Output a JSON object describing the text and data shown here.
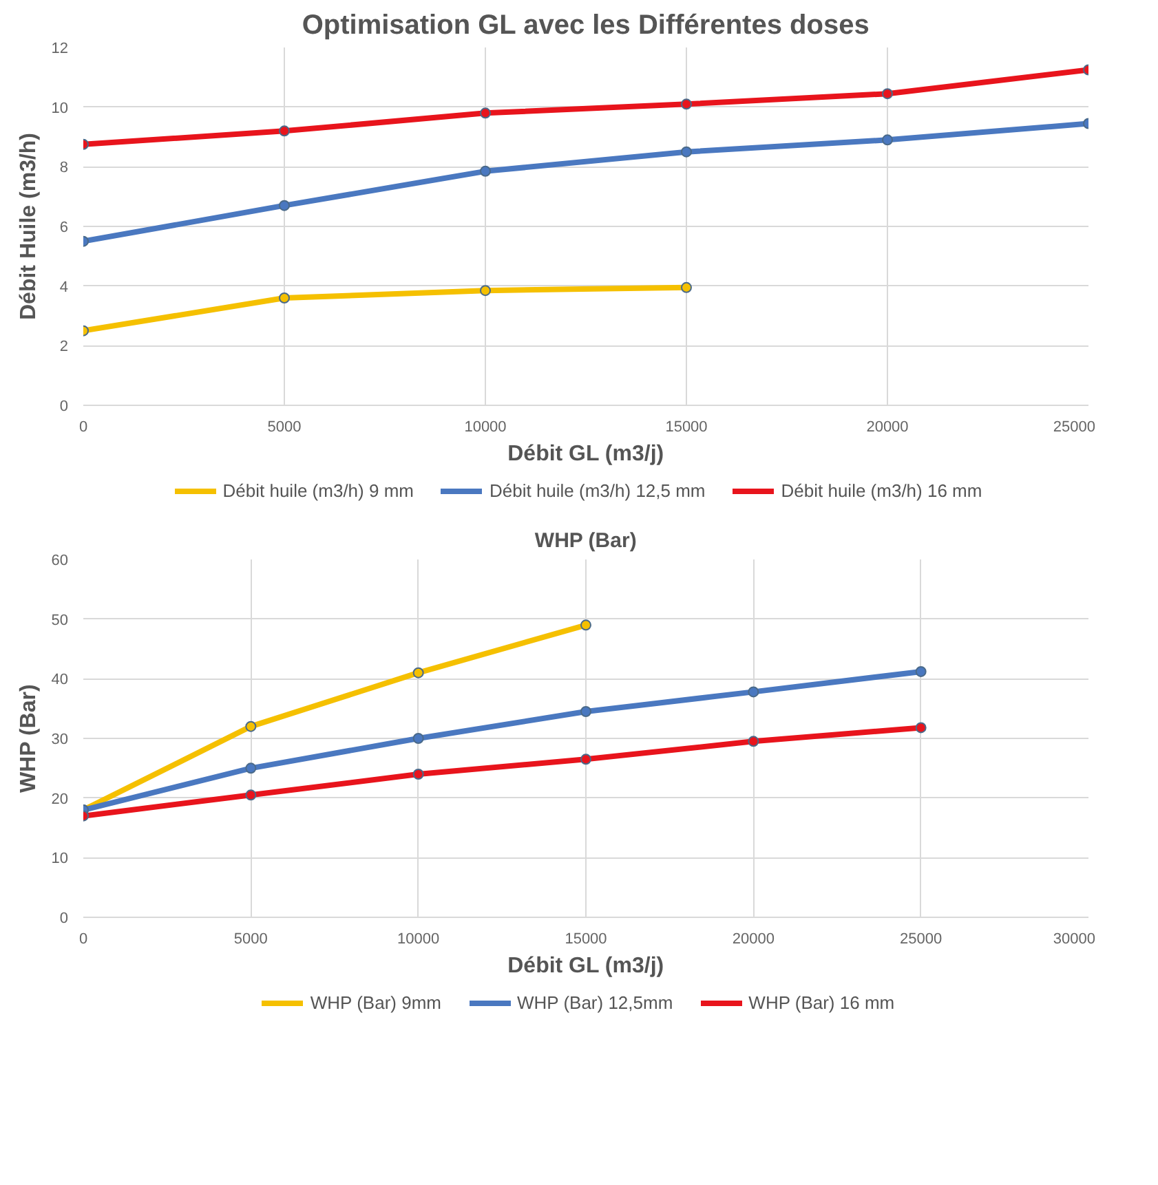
{
  "chart_data": [
    {
      "type": "line",
      "title": "Optimisation GL avec les Différentes doses",
      "xlabel": "Débit GL (m3/j)",
      "ylabel": "Débit Huile (m3/h)",
      "x": [
        0,
        5000,
        10000,
        15000,
        20000,
        25000
      ],
      "xlim": [
        0,
        25000
      ],
      "xticks": [
        0,
        5000,
        10000,
        15000,
        20000,
        25000
      ],
      "ylim": [
        0,
        12
      ],
      "yticks": [
        0,
        2,
        4,
        6,
        8,
        10,
        12
      ],
      "grid": true,
      "legend": "bottom",
      "marker": "circle",
      "line_style": "solid",
      "series": [
        {
          "name": "Débit huile (m3/h) 9 mm",
          "color": "#f5c000",
          "values": [
            2.5,
            3.6,
            3.85,
            3.95,
            null,
            null
          ]
        },
        {
          "name": "Débit huile (m3/h) 12,5 mm",
          "color": "#4a78c0",
          "values": [
            5.5,
            6.7,
            7.85,
            8.5,
            8.9,
            9.45
          ]
        },
        {
          "name": "Débit huile (m3/h) 16 mm",
          "color": "#e8141c",
          "values": [
            8.75,
            9.2,
            9.8,
            10.1,
            10.45,
            11.25
          ]
        }
      ]
    },
    {
      "type": "line",
      "title": "WHP (Bar)",
      "xlabel": "Débit GL (m3/j)",
      "ylabel": "WHP (Bar)",
      "x": [
        0,
        5000,
        10000,
        15000,
        20000,
        25000
      ],
      "xlim": [
        0,
        30000
      ],
      "xticks": [
        0,
        5000,
        10000,
        15000,
        20000,
        25000,
        30000
      ],
      "ylim": [
        0,
        60
      ],
      "yticks": [
        0,
        10,
        20,
        30,
        40,
        50,
        60
      ],
      "grid": true,
      "legend": "bottom",
      "marker": "circle",
      "line_style": "solid",
      "series": [
        {
          "name": "WHP (Bar) 9mm",
          "color": "#f5c000",
          "values": [
            18,
            32,
            41,
            49,
            null,
            null
          ]
        },
        {
          "name": "WHP (Bar) 12,5mm",
          "color": "#4a78c0",
          "values": [
            18,
            25,
            30,
            34.5,
            37.8,
            41.2
          ]
        },
        {
          "name": "WHP (Bar) 16 mm",
          "color": "#e8141c",
          "values": [
            17,
            20.5,
            24,
            26.5,
            29.5,
            31.8
          ]
        }
      ]
    }
  ]
}
